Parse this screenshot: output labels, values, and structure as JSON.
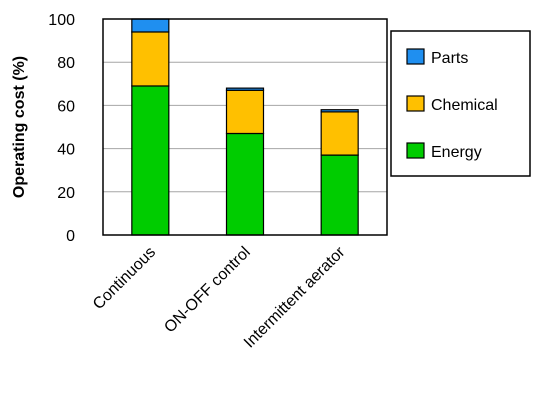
{
  "chart_data": {
    "type": "bar",
    "stacked": true,
    "categories": [
      "Continuous",
      "ON-OFF control",
      "Intermittent aerator"
    ],
    "series": [
      {
        "name": "Energy",
        "values": [
          69,
          47,
          37
        ],
        "color": "#00cc00"
      },
      {
        "name": "Chemical",
        "values": [
          25,
          20,
          20
        ],
        "color": "#ffc000"
      },
      {
        "name": "Parts",
        "values": [
          6,
          1,
          1
        ],
        "color": "#1f8ff0"
      }
    ],
    "ylabel": "Operating cost (%)",
    "xlabel": "",
    "ylim": [
      0,
      100
    ],
    "yticks": [
      0,
      20,
      40,
      60,
      80,
      100
    ],
    "grid": "horizontal",
    "legend_position": "right",
    "legend_order": [
      "Parts",
      "Chemical",
      "Energy"
    ]
  }
}
